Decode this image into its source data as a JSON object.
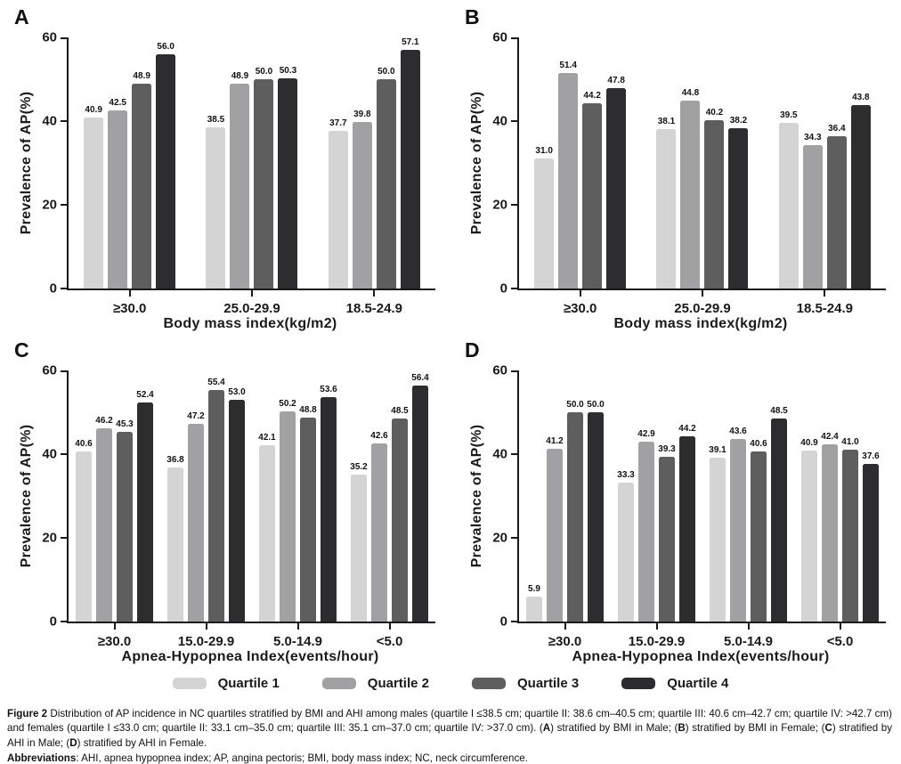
{
  "figure_label": "Figure 2",
  "axis_color": "#1a1a1a",
  "legend": {
    "items": [
      {
        "label": "Quartile 1",
        "color": "#d4d4d4"
      },
      {
        "label": "Quartile 2",
        "color": "#a1a1a3"
      },
      {
        "label": "Quartile 3",
        "color": "#5e5e5e"
      },
      {
        "label": "Quartile 4",
        "color": "#2d2d2f"
      }
    ]
  },
  "chart_data": [
    {
      "type": "bar",
      "panel": "A",
      "categories": [
        "≥30.0",
        "25.0-29.9",
        "18.5-24.9"
      ],
      "series": [
        {
          "name": "Quartile 1",
          "values": [
            40.9,
            38.5,
            37.7
          ]
        },
        {
          "name": "Quartile 2",
          "values": [
            42.5,
            48.9,
            39.8
          ]
        },
        {
          "name": "Quartile 3",
          "values": [
            48.9,
            50.0,
            50.0
          ]
        },
        {
          "name": "Quartile 4",
          "values": [
            56.0,
            50.3,
            57.1
          ]
        }
      ],
      "xlabel": "Body mass index(kg/m2)",
      "ylabel": "Prevalence of AP(%)",
      "ylim": [
        0,
        60
      ],
      "yticks": [
        0,
        20,
        40,
        60
      ],
      "value_labels": true,
      "grid": false,
      "legend_position": "shared-bottom"
    },
    {
      "type": "bar",
      "panel": "B",
      "categories": [
        "≥30.0",
        "25.0-29.9",
        "18.5-24.9"
      ],
      "series": [
        {
          "name": "Quartile 1",
          "values": [
            31.0,
            38.1,
            39.5
          ]
        },
        {
          "name": "Quartile 2",
          "values": [
            51.4,
            44.8,
            34.3
          ]
        },
        {
          "name": "Quartile 3",
          "values": [
            44.2,
            40.2,
            36.4
          ]
        },
        {
          "name": "Quartile 4",
          "values": [
            47.8,
            38.2,
            43.8
          ]
        }
      ],
      "xlabel": "Body mass index(kg/m2)",
      "ylabel": "Prevalence of AP(%)",
      "ylim": [
        0,
        60
      ],
      "yticks": [
        0,
        20,
        40,
        60
      ],
      "value_labels": true,
      "grid": false,
      "legend_position": "shared-bottom"
    },
    {
      "type": "bar",
      "panel": "C",
      "categories": [
        "≥30.0",
        "15.0-29.9",
        "5.0-14.9",
        "<5.0"
      ],
      "series": [
        {
          "name": "Quartile 1",
          "values": [
            40.6,
            36.8,
            42.1,
            35.2
          ]
        },
        {
          "name": "Quartile 2",
          "values": [
            46.2,
            47.2,
            50.2,
            42.6
          ]
        },
        {
          "name": "Quartile 3",
          "values": [
            45.3,
            55.4,
            48.8,
            48.5
          ]
        },
        {
          "name": "Quartile 4",
          "values": [
            52.4,
            53.0,
            53.6,
            56.4
          ]
        }
      ],
      "xlabel": "Apnea-Hypopnea Index(events/hour)",
      "ylabel": "Prevalence of AP(%)",
      "ylim": [
        0,
        60
      ],
      "yticks": [
        0,
        20,
        40,
        60
      ],
      "value_labels": true,
      "grid": false,
      "legend_position": "shared-bottom"
    },
    {
      "type": "bar",
      "panel": "D",
      "categories": [
        "≥30.0",
        "15.0-29.9",
        "5.0-14.9",
        "<5.0"
      ],
      "series": [
        {
          "name": "Quartile 1",
          "values": [
            5.9,
            33.3,
            39.1,
            40.9
          ]
        },
        {
          "name": "Quartile 2",
          "values": [
            41.2,
            42.9,
            43.6,
            42.4
          ]
        },
        {
          "name": "Quartile 3",
          "values": [
            50.0,
            39.3,
            40.6,
            41.0
          ]
        },
        {
          "name": "Quartile 4",
          "values": [
            50.0,
            44.2,
            48.5,
            37.6
          ]
        }
      ],
      "xlabel": "Apnea-Hypopnea Index(events/hour)",
      "ylabel": "Prevalence of AP(%)",
      "ylim": [
        0,
        60
      ],
      "yticks": [
        0,
        20,
        40,
        60
      ],
      "value_labels": true,
      "grid": false,
      "legend_position": "shared-bottom"
    }
  ],
  "caption": {
    "segments": [
      {
        "text": "Figure 2",
        "bold": true
      },
      {
        "text": " Distribution of AP incidence in NC quartiles stratified by BMI and AHI among males (quartile I ≤38.5 cm; quartile II: 38.6 cm–40.5 cm; quartile III: 40.6 cm–42.7 cm; quartile IV: >42.7 cm) and females (quartile I ≤33.0 cm; quartile II: 33.1 cm–35.0 cm; quartile III: 35.1 cm–37.0 cm; quartile IV: >37.0 cm). (",
        "bold": false
      },
      {
        "text": "A",
        "bold": true
      },
      {
        "text": ") stratified by BMI in Male; (",
        "bold": false
      },
      {
        "text": "B",
        "bold": true
      },
      {
        "text": ") stratified by BMI in Female; (",
        "bold": false
      },
      {
        "text": "C",
        "bold": true
      },
      {
        "text": ") stratified by AHI in Male; (",
        "bold": false
      },
      {
        "text": "D",
        "bold": true
      },
      {
        "text": ") stratified by AHI in Female.",
        "bold": false
      }
    ]
  },
  "abbreviations": {
    "segments": [
      {
        "text": "Abbreviations",
        "bold": true
      },
      {
        "text": ": AHI, apnea hypopnea index; AP, angina pectoris; BMI, body mass index; NC, neck circumference.",
        "bold": false
      }
    ]
  }
}
